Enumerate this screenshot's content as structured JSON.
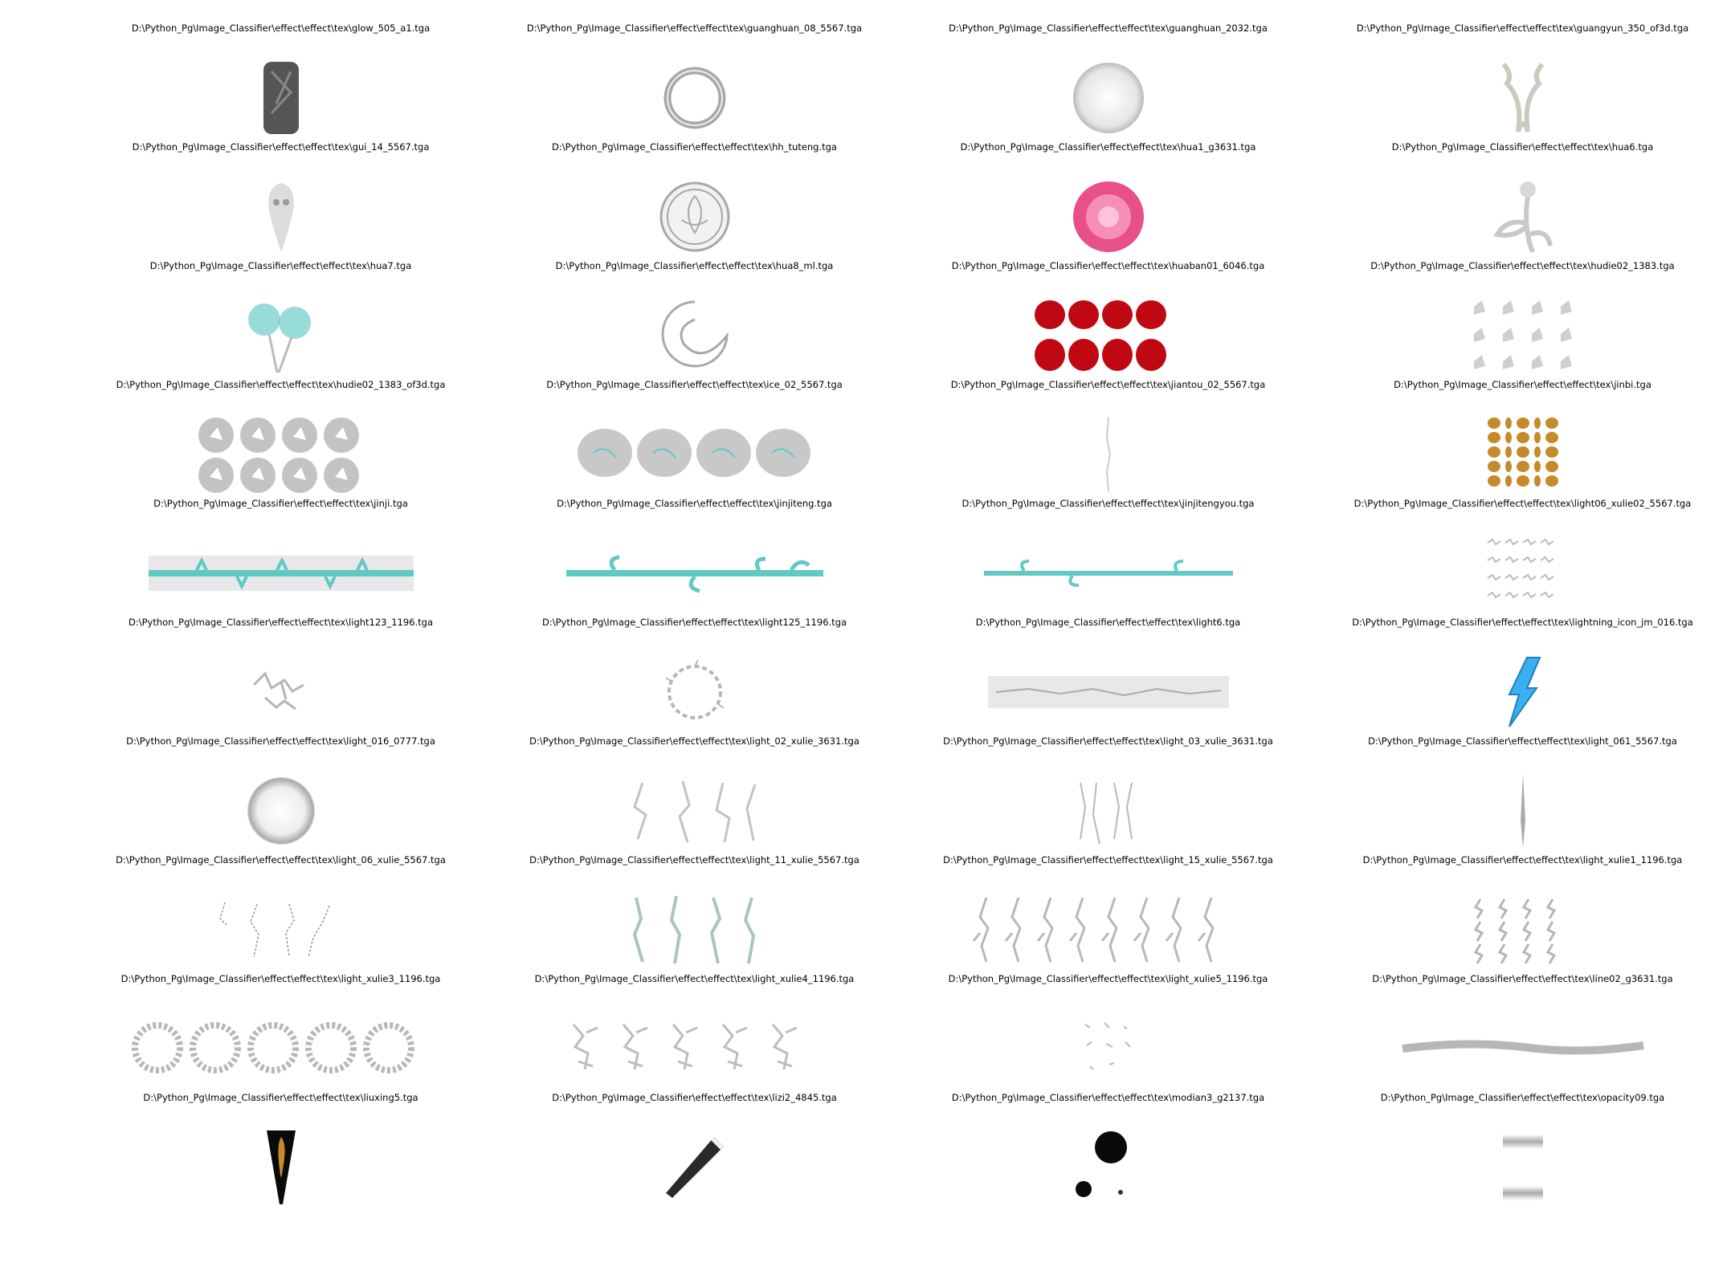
{
  "rows": [
    {
      "items": [
        {
          "label": "D:\\Python_Pg\\Image_Classifier\\effect\\effect\\tex\\glow_505_a1.tga",
          "preview": "dark-shield"
        },
        {
          "label": "D:\\Python_Pg\\Image_Classifier\\effect\\effect\\tex\\guanghuan_08_5567.tga",
          "preview": "ring"
        },
        {
          "label": "D:\\Python_Pg\\Image_Classifier\\effect\\effect\\tex\\guanghuan_2032.tga",
          "preview": "soft-sphere"
        },
        {
          "label": "D:\\Python_Pg\\Image_Classifier\\effect\\effect\\tex\\guangyun_350_of3d.tga",
          "preview": "ornament"
        }
      ]
    },
    {
      "items": [
        {
          "label": "D:\\Python_Pg\\Image_Classifier\\effect\\effect\\tex\\gui_14_5567.tga",
          "preview": "ghost"
        },
        {
          "label": "D:\\Python_Pg\\Image_Classifier\\effect\\effect\\tex\\hh_tuteng.tga",
          "preview": "totem-disc"
        },
        {
          "label": "D:\\Python_Pg\\Image_Classifier\\effect\\effect\\tex\\hua1_g3631.tga",
          "preview": "pink-rose"
        },
        {
          "label": "D:\\Python_Pg\\Image_Classifier\\effect\\effect\\tex\\hua6.tga",
          "preview": "flower-stem"
        }
      ]
    },
    {
      "items": [
        {
          "label": "D:\\Python_Pg\\Image_Classifier\\effect\\effect\\tex\\hua7.tga",
          "preview": "teal-flowers"
        },
        {
          "label": "D:\\Python_Pg\\Image_Classifier\\effect\\effect\\tex\\hua8_ml.tga",
          "preview": "swirl"
        },
        {
          "label": "D:\\Python_Pg\\Image_Classifier\\effect\\effect\\tex\\huaban01_6046.tga",
          "preview": "red-petals"
        },
        {
          "label": "D:\\Python_Pg\\Image_Classifier\\effect\\effect\\tex\\hudie02_1383.tga",
          "preview": "butterfly-grid-light"
        }
      ]
    },
    {
      "items": [
        {
          "label": "D:\\Python_Pg\\Image_Classifier\\effect\\effect\\tex\\hudie02_1383_of3d.tga",
          "preview": "butterfly-grid-dark"
        },
        {
          "label": "D:\\Python_Pg\\Image_Classifier\\effect\\effect\\tex\\ice_02_5567.tga",
          "preview": "ice-clouds"
        },
        {
          "label": "D:\\Python_Pg\\Image_Classifier\\effect\\effect\\tex\\jiantou_02_5567.tga",
          "preview": "thin-arrow"
        },
        {
          "label": "D:\\Python_Pg\\Image_Classifier\\effect\\effect\\tex\\jinbi.tga",
          "preview": "coins"
        }
      ]
    },
    {
      "items": [
        {
          "label": "D:\\Python_Pg\\Image_Classifier\\effect\\effect\\tex\\jinji.tga",
          "preview": "thorn-bar"
        },
        {
          "label": "D:\\Python_Pg\\Image_Classifier\\effect\\effect\\tex\\jinjiteng.tga",
          "preview": "vine-bar"
        },
        {
          "label": "D:\\Python_Pg\\Image_Classifier\\effect\\effect\\tex\\jinjitengyou.tga",
          "preview": "vine-bar-thin"
        },
        {
          "label": "D:\\Python_Pg\\Image_Classifier\\effect\\effect\\tex\\light06_xulie02_5567.tga",
          "preview": "lightning-grid"
        }
      ]
    },
    {
      "items": [
        {
          "label": "D:\\Python_Pg\\Image_Classifier\\effect\\effect\\tex\\light123_1196.tga",
          "preview": "lightning-cluster"
        },
        {
          "label": "D:\\Python_Pg\\Image_Classifier\\effect\\effect\\tex\\light125_1196.tga",
          "preview": "lightning-ring"
        },
        {
          "label": "D:\\Python_Pg\\Image_Classifier\\effect\\effect\\tex\\light6.tga",
          "preview": "lightning-horizontal"
        },
        {
          "label": "D:\\Python_Pg\\Image_Classifier\\effect\\effect\\tex\\lightning_icon_jm_016.tga",
          "preview": "blue-bolt"
        }
      ]
    },
    {
      "items": [
        {
          "label": "D:\\Python_Pg\\Image_Classifier\\effect\\effect\\tex\\light_016_0777.tga",
          "preview": "glow-ring"
        },
        {
          "label": "D:\\Python_Pg\\Image_Classifier\\effect\\effect\\tex\\light_02_xulie_3631.tga",
          "preview": "lightning-strands"
        },
        {
          "label": "D:\\Python_Pg\\Image_Classifier\\effect\\effect\\tex\\light_03_xulie_3631.tga",
          "preview": "lightning-strands-short"
        },
        {
          "label": "D:\\Python_Pg\\Image_Classifier\\effect\\effect\\tex\\light_061_5567.tga",
          "preview": "thin-spike"
        }
      ]
    },
    {
      "items": [
        {
          "label": "D:\\Python_Pg\\Image_Classifier\\effect\\effect\\tex\\light_06_xulie_5567.tga",
          "preview": "lightning-dotted"
        },
        {
          "label": "D:\\Python_Pg\\Image_Classifier\\effect\\effect\\tex\\light_11_xulie_5567.tga",
          "preview": "lightning-teal"
        },
        {
          "label": "D:\\Python_Pg\\Image_Classifier\\effect\\effect\\tex\\light_15_xulie_5567.tga",
          "preview": "lightning-branches"
        },
        {
          "label": "D:\\Python_Pg\\Image_Classifier\\effect\\effect\\tex\\light_xulie1_1196.tga",
          "preview": "lightning-small-grid"
        }
      ]
    },
    {
      "items": [
        {
          "label": "D:\\Python_Pg\\Image_Classifier\\effect\\effect\\tex\\light_xulie3_1196.tga",
          "preview": "noise-rings"
        },
        {
          "label": "D:\\Python_Pg\\Image_Classifier\\effect\\effect\\tex\\light_xulie4_1196.tga",
          "preview": "lightning-clusters"
        },
        {
          "label": "D:\\Python_Pg\\Image_Classifier\\effect\\effect\\tex\\light_xulie5_1196.tga",
          "preview": "sparse-marks"
        },
        {
          "label": "D:\\Python_Pg\\Image_Classifier\\effect\\effect\\tex\\line02_g3631.tga",
          "preview": "gray-stroke"
        }
      ]
    },
    {
      "items": [
        {
          "label": "D:\\Python_Pg\\Image_Classifier\\effect\\effect\\tex\\liuxing5.tga",
          "preview": "black-gold-wedge"
        },
        {
          "label": "D:\\Python_Pg\\Image_Classifier\\effect\\effect\\tex\\lizi2_4845.tga",
          "preview": "ribbon"
        },
        {
          "label": "D:\\Python_Pg\\Image_Classifier\\effect\\effect\\tex\\modian3_g2137.tga",
          "preview": "ink-blots"
        },
        {
          "label": "D:\\Python_Pg\\Image_Classifier\\effect\\effect\\tex\\opacity09.tga",
          "preview": "gray-bars"
        }
      ]
    }
  ],
  "colors": {
    "background": "#ffffff",
    "label": "#000000",
    "preview_gray": "#a8a8a8",
    "teal": "#5fc9c4",
    "rose": "#e8508a",
    "petal_red": "#c00812",
    "gold": "#c58a2a",
    "bolt_blue": "#3ab0ee",
    "shield_dark": "#555555",
    "ink_black": "#0a0a0a"
  }
}
